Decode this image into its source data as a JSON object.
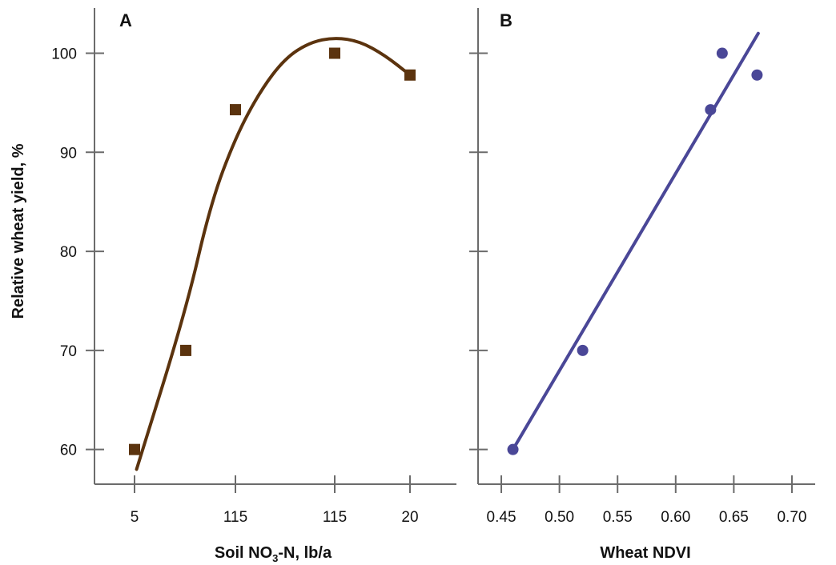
{
  "colors": {
    "panel_a": "#5b330e",
    "panel_b": "#4a4797",
    "axis": "#6b6b6b"
  },
  "shared": {
    "ylabel": "Relative wheat yield, %",
    "yticks": [
      "60",
      "70",
      "80",
      "90",
      "100"
    ]
  },
  "chart_data": [
    {
      "panel": "A",
      "type": "scatter",
      "marker": "square",
      "xlabel_parts": [
        "Soil NO",
        "3",
        "-N, lb/a"
      ],
      "xticks": [
        "5",
        "115",
        "115",
        "20"
      ],
      "ylabel": "Relative wheat yield, %",
      "ylim": [
        56.5,
        104
      ],
      "yticks": [
        60,
        70,
        80,
        90,
        100
      ],
      "points": [
        {
          "x": 5,
          "y": 60
        },
        {
          "x": 10,
          "y": 70
        },
        {
          "x": 20,
          "y": 94.3
        },
        {
          "x": 40,
          "y": 100
        },
        {
          "x": 55,
          "y": 97.8
        }
      ],
      "fit": {
        "type": "quadratic curve",
        "points": [
          {
            "x": 5.2,
            "y": 58
          },
          {
            "x": 10,
            "y": 74
          },
          {
            "x": 15,
            "y": 84.8
          },
          {
            "x": 20,
            "y": 91.5
          },
          {
            "x": 25,
            "y": 96.2
          },
          {
            "x": 30,
            "y": 99.5
          },
          {
            "x": 35,
            "y": 101.1
          },
          {
            "x": 40,
            "y": 101.6
          },
          {
            "x": 45,
            "y": 101.2
          },
          {
            "x": 50,
            "y": 99.8
          },
          {
            "x": 55,
            "y": 97.8
          }
        ]
      }
    },
    {
      "panel": "B",
      "type": "scatter",
      "marker": "circle",
      "xlabel": "Wheat NDVI",
      "xlim": [
        0.43,
        0.72
      ],
      "xticks": [
        "0.45",
        "0.50",
        "0.55",
        "0.60",
        "0.65",
        "0.70"
      ],
      "ylabel": "Relative wheat yield, %",
      "ylim": [
        56.5,
        104
      ],
      "yticks": [
        60,
        70,
        80,
        90,
        100
      ],
      "points": [
        {
          "x": 0.46,
          "y": 60
        },
        {
          "x": 0.52,
          "y": 70
        },
        {
          "x": 0.63,
          "y": 94.3
        },
        {
          "x": 0.64,
          "y": 100
        },
        {
          "x": 0.67,
          "y": 97.8
        }
      ],
      "fit": {
        "type": "linear",
        "points": [
          {
            "x": 0.46,
            "y": 60
          },
          {
            "x": 0.671,
            "y": 102
          }
        ]
      }
    }
  ]
}
